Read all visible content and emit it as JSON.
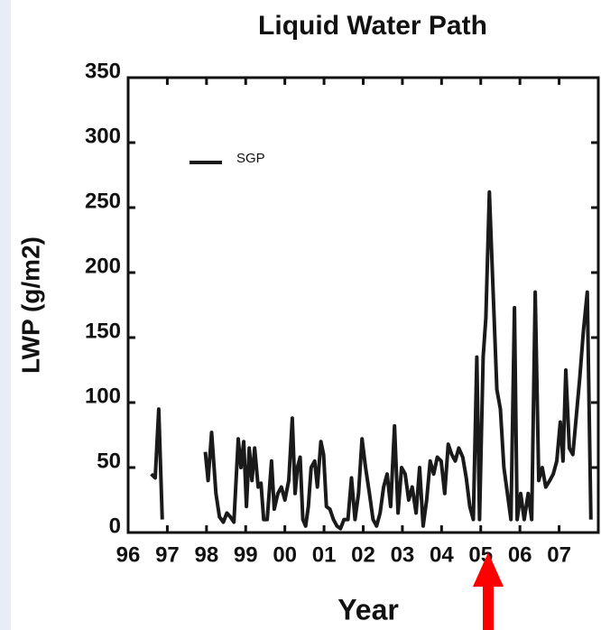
{
  "chart_data": {
    "type": "line",
    "title": "Liquid Water Path",
    "xlabel": "Year",
    "ylabel": "LWP (g/m2)",
    "xlim": [
      1996,
      2008
    ],
    "ylim": [
      0,
      350
    ],
    "xticks": [
      {
        "value": 1996,
        "label": "96"
      },
      {
        "value": 1997,
        "label": "97"
      },
      {
        "value": 1998,
        "label": "98"
      },
      {
        "value": 1999,
        "label": "99"
      },
      {
        "value": 2000,
        "label": "00"
      },
      {
        "value": 2001,
        "label": "01"
      },
      {
        "value": 2002,
        "label": "02"
      },
      {
        "value": 2003,
        "label": "03"
      },
      {
        "value": 2004,
        "label": "04"
      },
      {
        "value": 2005,
        "label": "05"
      },
      {
        "value": 2006,
        "label": "06"
      },
      {
        "value": 2007,
        "label": "07"
      }
    ],
    "yticks": [
      0,
      50,
      100,
      150,
      200,
      250,
      300,
      350
    ],
    "legend": "upper left",
    "x": [
      1996.59,
      1996.69,
      1996.78,
      1996.87,
      null,
      1997.97,
      1998.04,
      1998.13,
      1998.24,
      1998.33,
      1998.43,
      1998.52,
      1998.61,
      1998.7,
      1998.81,
      1998.88,
      1998.95,
      1999.02,
      1999.09,
      1999.16,
      1999.23,
      1999.32,
      1999.39,
      1999.46,
      1999.55,
      1999.66,
      1999.73,
      1999.82,
      1999.91,
      2000.0,
      2000.1,
      2000.19,
      2000.26,
      2000.32,
      2000.39,
      2000.46,
      2000.53,
      2000.6,
      2000.67,
      2000.76,
      2000.83,
      2000.92,
      2000.99,
      2001.06,
      2001.15,
      2001.24,
      2001.33,
      2001.42,
      2001.51,
      2001.61,
      2001.7,
      2001.79,
      2001.88,
      2001.97,
      2002.06,
      2002.16,
      2002.25,
      2002.34,
      2002.43,
      2002.52,
      2002.61,
      2002.7,
      2002.8,
      2002.89,
      2002.98,
      2003.07,
      2003.16,
      2003.25,
      2003.35,
      2003.44,
      2003.53,
      2003.62,
      2003.71,
      2003.8,
      2003.89,
      2003.99,
      2004.08,
      2004.17,
      2004.26,
      2004.35,
      2004.44,
      2004.54,
      2004.63,
      2004.72,
      2004.81,
      2004.9,
      2004.97,
      2005.06,
      2005.13,
      2005.22,
      2005.31,
      2005.41,
      2005.5,
      2005.59,
      2005.68,
      2005.77,
      2005.86,
      2005.93,
      2006.02,
      2006.11,
      2006.21,
      2006.3,
      2006.39,
      2006.48,
      2006.57,
      2006.66,
      2006.76,
      2006.85,
      2006.94,
      2007.03,
      2007.1,
      2007.17,
      2007.26,
      2007.35,
      2007.44,
      2007.53,
      2007.62,
      2007.72,
      2007.81
    ],
    "series": [
      {
        "name": "SGP",
        "color": "#1a1a1a",
        "values": [
          45,
          42,
          95,
          10,
          null,
          62,
          40,
          77,
          30,
          12,
          8,
          15,
          12,
          8,
          72,
          50,
          70,
          20,
          65,
          40,
          65,
          35,
          38,
          10,
          10,
          55,
          18,
          30,
          35,
          25,
          40,
          88,
          30,
          50,
          58,
          10,
          5,
          20,
          50,
          55,
          35,
          70,
          60,
          20,
          18,
          10,
          5,
          3,
          10,
          10,
          42,
          10,
          30,
          72,
          50,
          30,
          10,
          5,
          15,
          35,
          45,
          20,
          82,
          15,
          50,
          45,
          25,
          35,
          15,
          50,
          5,
          25,
          55,
          45,
          58,
          55,
          30,
          68,
          60,
          55,
          65,
          58,
          42,
          20,
          10,
          135,
          10,
          135,
          165,
          262,
          190,
          110,
          95,
          50,
          30,
          10,
          173,
          10,
          30,
          10,
          30,
          10,
          185,
          40,
          50,
          35,
          40,
          45,
          55,
          85,
          55,
          125,
          65,
          60,
          90,
          120,
          155,
          185,
          10
        ]
      }
    ]
  }
}
